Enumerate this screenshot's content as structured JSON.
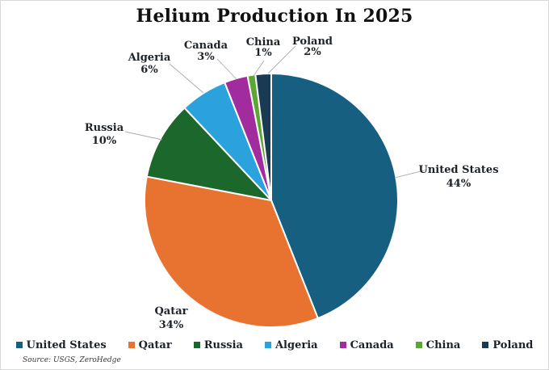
{
  "title": "Helium Production In 2025",
  "source_note": "Source: USGS, ZeroHedge",
  "chart_data": {
    "type": "pie",
    "title": "Helium Production In 2025",
    "direction": "clockwise",
    "start_angle_deg": 0,
    "legend_position": "bottom",
    "data_labels": "name_and_percent",
    "slice_gap_color": "#ffffff",
    "leader_line_color": "#ababab",
    "slices": [
      {
        "label": "United States",
        "value": 44,
        "pct_label": "44%",
        "color": "#165f80"
      },
      {
        "label": "Qatar",
        "value": 34,
        "pct_label": "34%",
        "color": "#e87331"
      },
      {
        "label": "Russia",
        "value": 10,
        "pct_label": "10%",
        "color": "#1c672b"
      },
      {
        "label": "Algeria",
        "value": 6,
        "pct_label": "6%",
        "color": "#2ba2dc"
      },
      {
        "label": "Canada",
        "value": 3,
        "pct_label": "3%",
        "color": "#a02c9e"
      },
      {
        "label": "China",
        "value": 1,
        "pct_label": "1%",
        "color": "#5ba733"
      },
      {
        "label": "Poland",
        "value": 2,
        "pct_label": "2%",
        "color": "#1a3a53"
      }
    ]
  }
}
